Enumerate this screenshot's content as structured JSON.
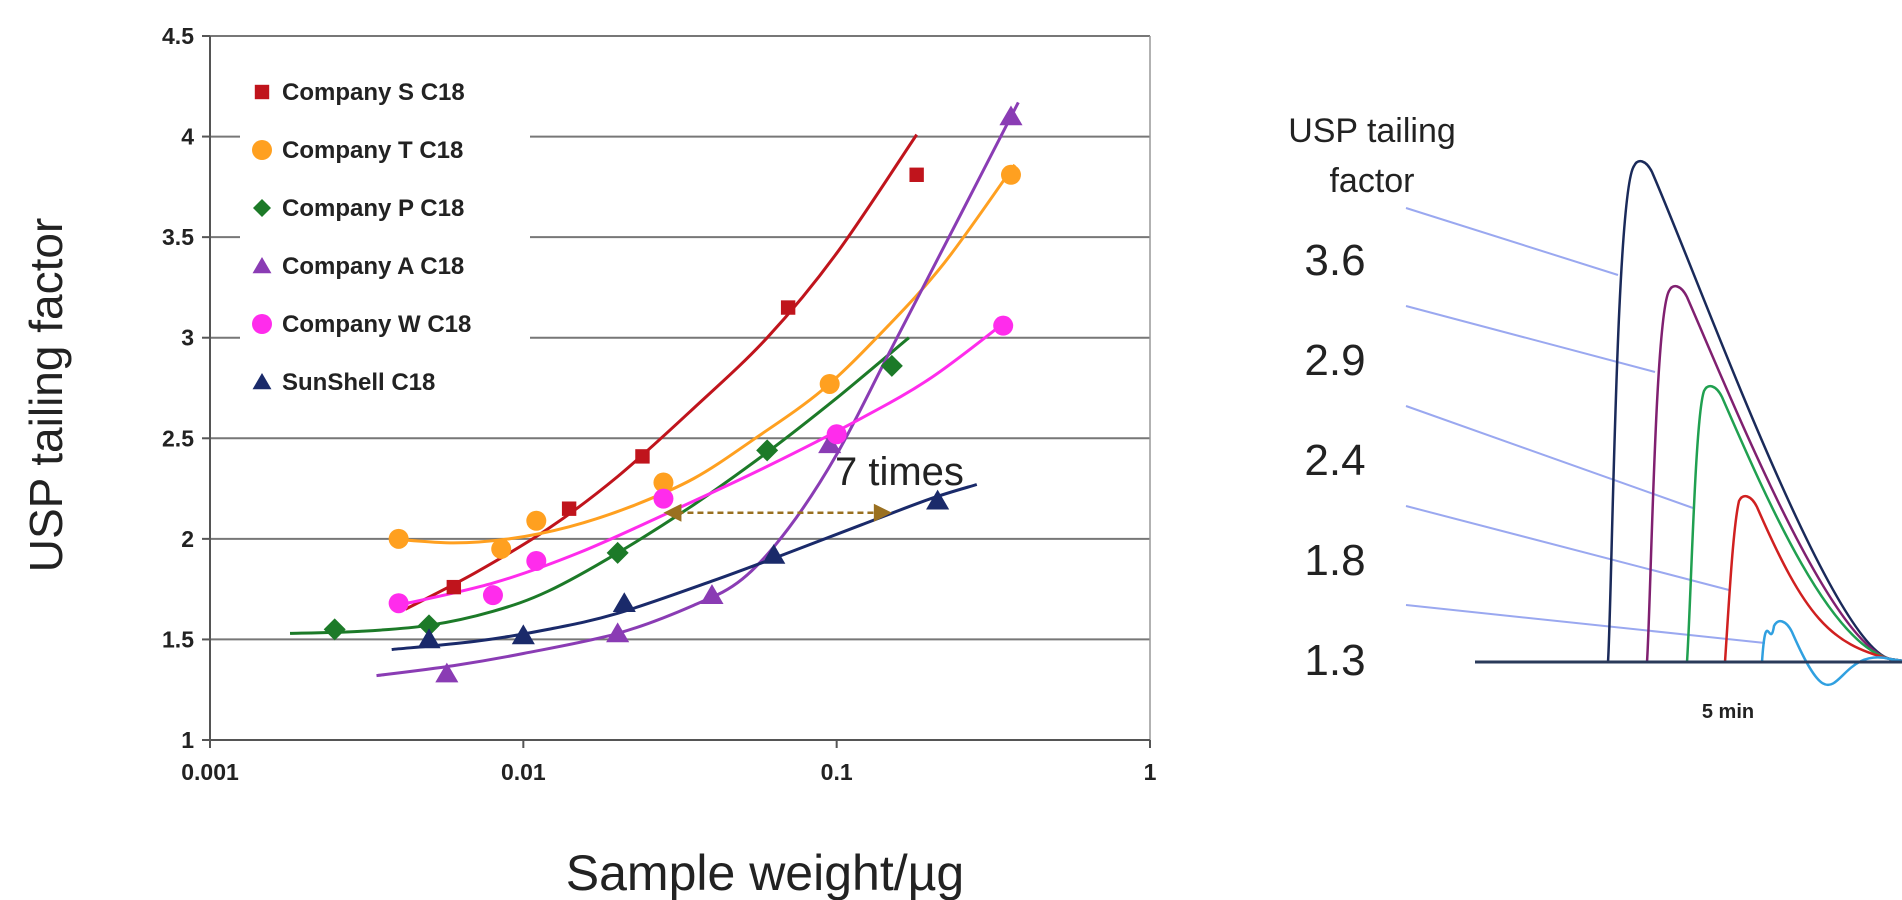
{
  "chart_data": [
    {
      "type": "scatter",
      "xlabel": "Sample weight/µg",
      "ylabel": "USP tailing factor",
      "x_scale": "log",
      "xlim": [
        0.001,
        1
      ],
      "ylim": [
        1,
        4.5
      ],
      "x_ticks": [
        {
          "value": 0.001,
          "label": "0.001"
        },
        {
          "value": 0.01,
          "label": "0.01"
        },
        {
          "value": 0.1,
          "label": "0.1"
        },
        {
          "value": 1,
          "label": "1"
        }
      ],
      "y_ticks": [
        {
          "value": 1,
          "label": "1"
        },
        {
          "value": 1.5,
          "label": "1.5"
        },
        {
          "value": 2,
          "label": "2"
        },
        {
          "value": 2.5,
          "label": "2.5"
        },
        {
          "value": 3,
          "label": "3"
        },
        {
          "value": 3.5,
          "label": "3.5"
        },
        {
          "value": 4,
          "label": "4"
        },
        {
          "value": 4.5,
          "label": "4.5"
        }
      ],
      "grid": "horizontal",
      "legend_position": "top-left",
      "series": [
        {
          "name": "Company S C18",
          "color": "#c0141c",
          "marker": "square",
          "x": [
            0.006,
            0.014,
            0.024,
            0.07,
            0.18
          ],
          "y": [
            1.76,
            2.15,
            2.41,
            3.15,
            3.81
          ],
          "fit_x": [
            0.0042,
            0.007,
            0.012,
            0.02,
            0.035,
            0.06,
            0.1,
            0.18
          ],
          "fit_y": [
            1.65,
            1.83,
            2.05,
            2.31,
            2.65,
            3.0,
            3.42,
            4.01
          ]
        },
        {
          "name": "Company T C18",
          "color": "#ffa020",
          "marker": "circle",
          "x": [
            0.004,
            0.0085,
            0.011,
            0.028,
            0.095,
            0.36
          ],
          "y": [
            2.0,
            1.95,
            2.09,
            2.28,
            2.77,
            3.81
          ],
          "fit_x": [
            0.0038,
            0.006,
            0.009,
            0.014,
            0.022,
            0.035,
            0.055,
            0.09,
            0.14,
            0.22,
            0.37
          ],
          "fit_y": [
            2.0,
            1.98,
            2.0,
            2.06,
            2.16,
            2.3,
            2.5,
            2.74,
            3.03,
            3.37,
            3.86
          ]
        },
        {
          "name": "Company P C18",
          "color": "#1c7a28",
          "marker": "diamond",
          "x": [
            0.0025,
            0.005,
            0.02,
            0.06,
            0.15
          ],
          "y": [
            1.55,
            1.57,
            1.93,
            2.44,
            2.86
          ],
          "fit_x": [
            0.0018,
            0.003,
            0.005,
            0.008,
            0.012,
            0.02,
            0.035,
            0.06,
            0.1,
            0.17
          ],
          "fit_y": [
            1.53,
            1.54,
            1.57,
            1.64,
            1.74,
            1.93,
            2.17,
            2.43,
            2.7,
            3.0
          ]
        },
        {
          "name": "Company A C18",
          "color": "#8a3cb4",
          "marker": "triangle",
          "x": [
            0.0057,
            0.02,
            0.04,
            0.095,
            0.36
          ],
          "y": [
            1.33,
            1.53,
            1.72,
            2.47,
            4.1
          ],
          "fit_x": [
            0.0034,
            0.006,
            0.01,
            0.02,
            0.035,
            0.05,
            0.07,
            0.1,
            0.15,
            0.25,
            0.38
          ],
          "fit_y": [
            1.32,
            1.37,
            1.43,
            1.53,
            1.67,
            1.8,
            2.05,
            2.42,
            2.95,
            3.62,
            4.17
          ]
        },
        {
          "name": "Company W C18",
          "color": "#ff2cec",
          "marker": "circle",
          "x": [
            0.004,
            0.008,
            0.011,
            0.028,
            0.1,
            0.34
          ],
          "y": [
            1.68,
            1.72,
            1.89,
            2.2,
            2.52,
            3.06
          ],
          "fit_x": [
            0.004,
            0.008,
            0.015,
            0.03,
            0.06,
            0.12,
            0.2,
            0.34
          ],
          "fit_y": [
            1.67,
            1.78,
            1.93,
            2.14,
            2.36,
            2.6,
            2.8,
            3.07
          ]
        },
        {
          "name": "SunShell C18",
          "color": "#1a2a6a",
          "marker": "triangle",
          "x": [
            0.005,
            0.01,
            0.021,
            0.063,
            0.21
          ],
          "y": [
            1.5,
            1.52,
            1.68,
            1.92,
            2.19
          ],
          "fit_x": [
            0.0038,
            0.007,
            0.012,
            0.02,
            0.04,
            0.07,
            0.12,
            0.2,
            0.28
          ],
          "fit_y": [
            1.45,
            1.49,
            1.55,
            1.63,
            1.79,
            1.93,
            2.07,
            2.2,
            2.27
          ]
        }
      ],
      "annotation": {
        "text": "7 times",
        "arrow_x": [
          0.028,
          0.15
        ],
        "arrow_y": 2.13,
        "color": "#9a7020"
      }
    },
    {
      "type": "line",
      "label_heading": [
        "USP tailing",
        "factor"
      ],
      "time_label": "5 min",
      "peaks": [
        {
          "label": "3.6",
          "color": "#1a2a5a",
          "height": 1.0
        },
        {
          "label": "2.9",
          "color": "#802070",
          "height": 0.75
        },
        {
          "label": "2.4",
          "color": "#20a050",
          "height": 0.55
        },
        {
          "label": "1.8",
          "color": "#d02020",
          "height": 0.33
        },
        {
          "label": "1.3",
          "color": "#30a0e0",
          "height": 0.08
        }
      ],
      "leader_color": "#9aa8f0"
    }
  ]
}
